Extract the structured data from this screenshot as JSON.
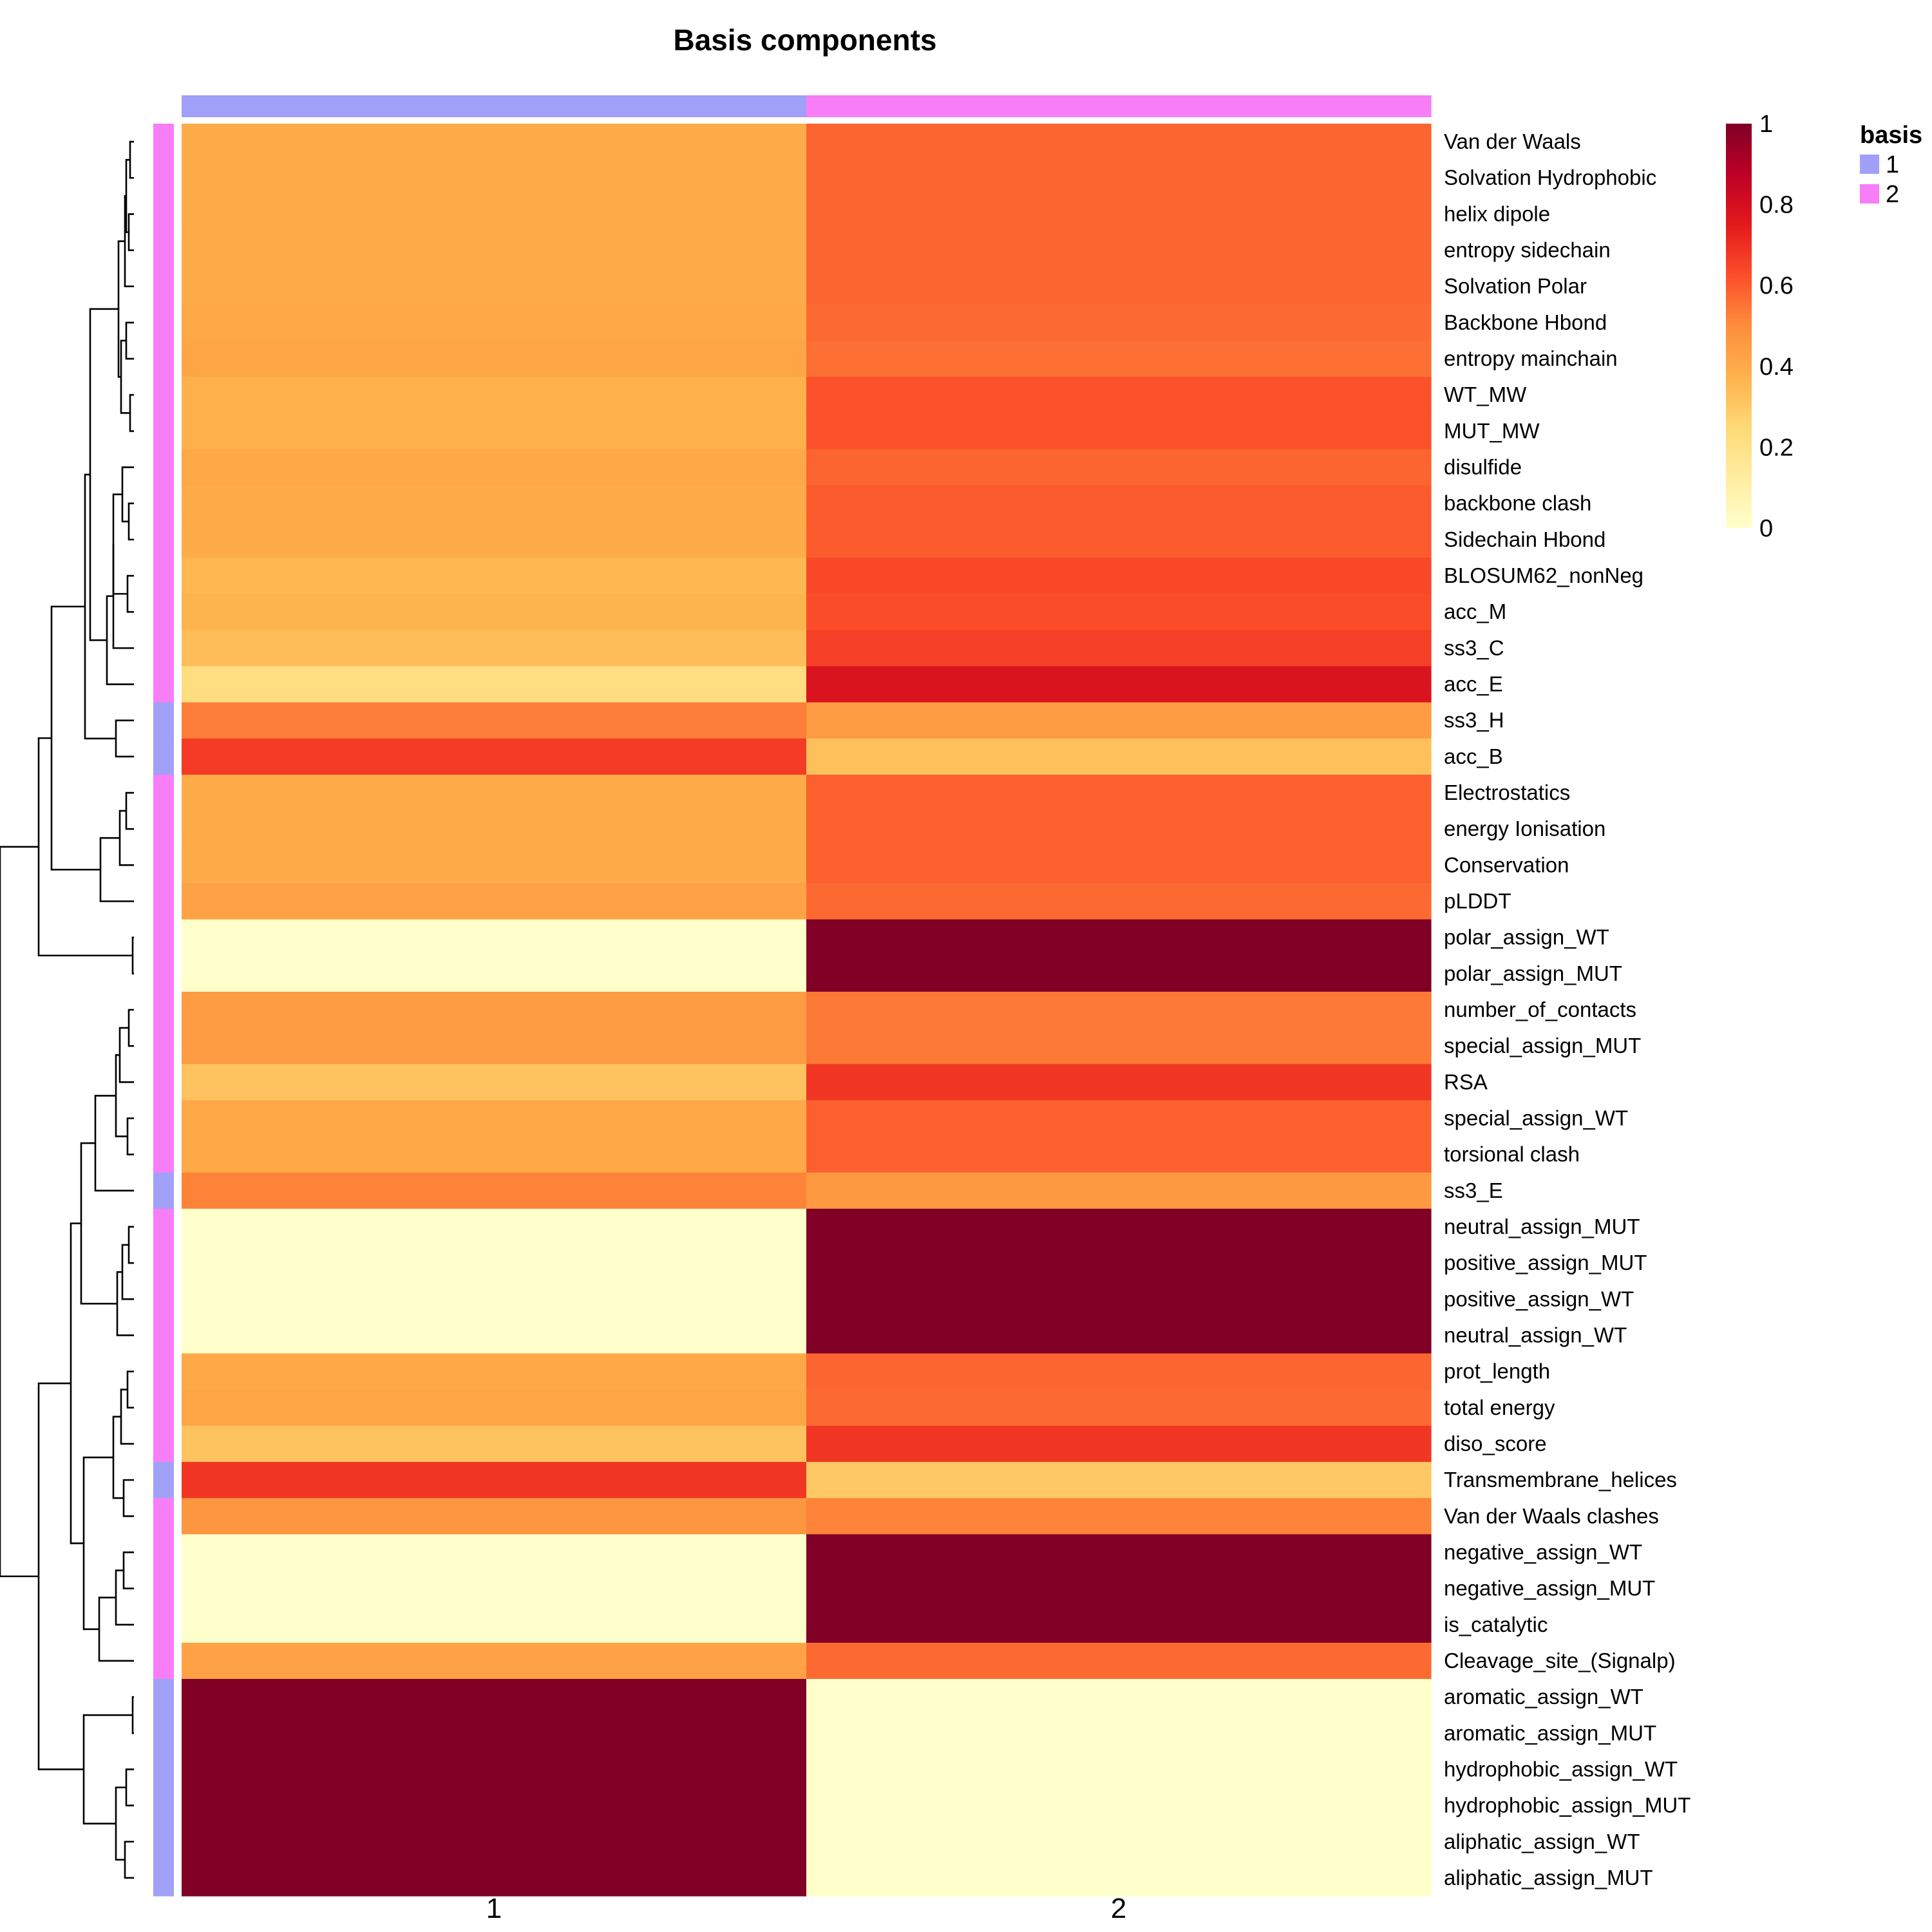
{
  "chart_data": {
    "type": "heatmap",
    "title": "Basis components",
    "columns": [
      "1",
      "2"
    ],
    "column_annotation": [
      "1",
      "2"
    ],
    "rows": [
      {
        "label": "Van der Waals",
        "basis": "2",
        "values": [
          0.4,
          0.58
        ]
      },
      {
        "label": "Solvation Hydrophobic",
        "basis": "2",
        "values": [
          0.4,
          0.58
        ]
      },
      {
        "label": "helix dipole",
        "basis": "2",
        "values": [
          0.4,
          0.58
        ]
      },
      {
        "label": "entropy sidechain",
        "basis": "2",
        "values": [
          0.4,
          0.58
        ]
      },
      {
        "label": "Solvation Polar",
        "basis": "2",
        "values": [
          0.4,
          0.58
        ]
      },
      {
        "label": "Backbone Hbond",
        "basis": "2",
        "values": [
          0.41,
          0.57
        ]
      },
      {
        "label": "entropy mainchain",
        "basis": "2",
        "values": [
          0.42,
          0.56
        ]
      },
      {
        "label": "WT_MW",
        "basis": "2",
        "values": [
          0.38,
          0.62
        ]
      },
      {
        "label": "MUT_MW",
        "basis": "2",
        "values": [
          0.38,
          0.62
        ]
      },
      {
        "label": "disulfide",
        "basis": "2",
        "values": [
          0.41,
          0.58
        ]
      },
      {
        "label": "backbone clash",
        "basis": "2",
        "values": [
          0.4,
          0.6
        ]
      },
      {
        "label": "Sidechain Hbond",
        "basis": "2",
        "values": [
          0.4,
          0.6
        ]
      },
      {
        "label": "BLOSUM62_nonNeg",
        "basis": "2",
        "values": [
          0.36,
          0.64
        ]
      },
      {
        "label": "acc_M",
        "basis": "2",
        "values": [
          0.37,
          0.63
        ]
      },
      {
        "label": "ss3_C",
        "basis": "2",
        "values": [
          0.34,
          0.66
        ]
      },
      {
        "label": "acc_E",
        "basis": "2",
        "values": [
          0.22,
          0.78
        ]
      },
      {
        "label": "ss3_H",
        "basis": "1",
        "values": [
          0.53,
          0.45
        ]
      },
      {
        "label": "acc_B",
        "basis": "1",
        "values": [
          0.67,
          0.33
        ]
      },
      {
        "label": "Electrostatics",
        "basis": "2",
        "values": [
          0.4,
          0.59
        ]
      },
      {
        "label": "energy Ionisation",
        "basis": "2",
        "values": [
          0.4,
          0.59
        ]
      },
      {
        "label": "Conservation",
        "basis": "2",
        "values": [
          0.4,
          0.59
        ]
      },
      {
        "label": "pLDDT",
        "basis": "2",
        "values": [
          0.43,
          0.57
        ]
      },
      {
        "label": "polar_assign_WT",
        "basis": "2",
        "values": [
          0.0,
          1.0
        ]
      },
      {
        "label": "polar_assign_MUT",
        "basis": "2",
        "values": [
          0.0,
          1.0
        ]
      },
      {
        "label": "number_of_contacts",
        "basis": "2",
        "values": [
          0.45,
          0.54
        ]
      },
      {
        "label": "special_assign_MUT",
        "basis": "2",
        "values": [
          0.45,
          0.54
        ]
      },
      {
        "label": "RSA",
        "basis": "2",
        "values": [
          0.32,
          0.68
        ]
      },
      {
        "label": "special_assign_WT",
        "basis": "2",
        "values": [
          0.41,
          0.59
        ]
      },
      {
        "label": "torsional clash",
        "basis": "2",
        "values": [
          0.41,
          0.59
        ]
      },
      {
        "label": "ss3_E",
        "basis": "1",
        "values": [
          0.52,
          0.46
        ]
      },
      {
        "label": "neutral_assign_MUT",
        "basis": "2",
        "values": [
          0.0,
          1.0
        ]
      },
      {
        "label": "positive_assign_MUT",
        "basis": "2",
        "values": [
          0.0,
          1.0
        ]
      },
      {
        "label": "positive_assign_WT",
        "basis": "2",
        "values": [
          0.0,
          1.0
        ]
      },
      {
        "label": "neutral_assign_WT",
        "basis": "2",
        "values": [
          0.0,
          1.0
        ]
      },
      {
        "label": "prot_length",
        "basis": "2",
        "values": [
          0.41,
          0.58
        ]
      },
      {
        "label": "total energy",
        "basis": "2",
        "values": [
          0.42,
          0.57
        ]
      },
      {
        "label": "diso_score",
        "basis": "2",
        "values": [
          0.32,
          0.68
        ]
      },
      {
        "label": "Transmembrane_helices",
        "basis": "1",
        "values": [
          0.68,
          0.3
        ]
      },
      {
        "label": "Van der Waals clashes",
        "basis": "2",
        "values": [
          0.47,
          0.52
        ]
      },
      {
        "label": "negative_assign_WT",
        "basis": "2",
        "values": [
          0.0,
          1.0
        ]
      },
      {
        "label": "negative_assign_MUT",
        "basis": "2",
        "values": [
          0.0,
          1.0
        ]
      },
      {
        "label": "is_catalytic",
        "basis": "2",
        "values": [
          0.0,
          1.0
        ]
      },
      {
        "label": "Cleavage_site_(Signalp)",
        "basis": "2",
        "values": [
          0.43,
          0.57
        ]
      },
      {
        "label": "aromatic_assign_WT",
        "basis": "1",
        "values": [
          1.0,
          0.0
        ]
      },
      {
        "label": "aromatic_assign_MUT",
        "basis": "1",
        "values": [
          1.0,
          0.0
        ]
      },
      {
        "label": "hydrophobic_assign_WT",
        "basis": "1",
        "values": [
          1.0,
          0.0
        ]
      },
      {
        "label": "hydrophobic_assign_MUT",
        "basis": "1",
        "values": [
          1.0,
          0.0
        ]
      },
      {
        "label": "aliphatic_assign_WT",
        "basis": "1",
        "values": [
          1.0,
          0.0
        ]
      },
      {
        "label": "aliphatic_assign_MUT",
        "basis": "1",
        "values": [
          1.0,
          0.0
        ]
      }
    ],
    "color_scale": {
      "stops": [
        [
          0.0,
          "#ffffcc"
        ],
        [
          0.125,
          "#ffeda0"
        ],
        [
          0.25,
          "#fed976"
        ],
        [
          0.375,
          "#feb24c"
        ],
        [
          0.5,
          "#fd8d3c"
        ],
        [
          0.625,
          "#fc4e2a"
        ],
        [
          0.75,
          "#e31a1c"
        ],
        [
          0.875,
          "#bd0026"
        ],
        [
          1.0,
          "#800026"
        ]
      ],
      "ticks": [
        "0",
        "0.2",
        "0.4",
        "0.6",
        "0.8",
        "1"
      ],
      "range": [
        0,
        1
      ]
    },
    "basis_legend": {
      "title": "basis",
      "items": [
        {
          "label": "1",
          "color": "#a0a0f8"
        },
        {
          "label": "2",
          "color": "#f87ef8"
        }
      ]
    },
    "row_dendrogram": true,
    "legend_position": "right"
  }
}
